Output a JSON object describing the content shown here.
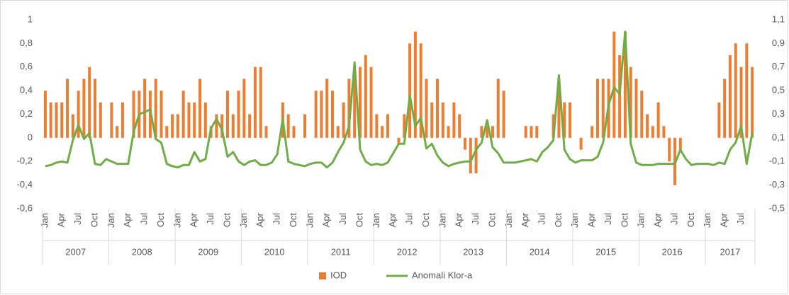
{
  "chart_data": {
    "type": "bar-line",
    "categories": [
      "Jan",
      null,
      null,
      "Apr",
      null,
      null,
      "Jul",
      null,
      null,
      "Oct",
      null,
      null,
      "Jan",
      null,
      null,
      "Apr",
      null,
      null,
      "Jul",
      null,
      null,
      "Oct",
      null,
      null,
      "Jan",
      null,
      null,
      "Apr",
      null,
      null,
      "Jul",
      null,
      null,
      "Oct",
      null,
      null,
      "Jan",
      null,
      null,
      "Apr",
      null,
      null,
      "Jul",
      null,
      null,
      "Oct",
      null,
      null,
      "Jan",
      null,
      null,
      "Apr",
      null,
      null,
      "Jul",
      null,
      null,
      "Oct",
      null,
      null,
      "Jan",
      null,
      null,
      "Apr",
      null,
      null,
      "Jul",
      null,
      null,
      "Oct",
      null,
      null,
      "Jan",
      null,
      null,
      "Apr",
      null,
      null,
      "Jul",
      null,
      null,
      "Oct",
      null,
      null,
      "Jan",
      null,
      null,
      "Apr",
      null,
      null,
      "Jul",
      null,
      null,
      "Oct",
      null,
      null,
      "Jan",
      null,
      null,
      "Apr",
      null,
      null,
      "Jul",
      null,
      null,
      "Oct",
      null,
      null,
      "Jan",
      null,
      null,
      "Apr",
      null,
      null,
      "Jul",
      null,
      null,
      "Oct",
      null,
      null,
      "Jan",
      null,
      null,
      "Apr",
      null,
      null,
      "Jul",
      null,
      null
    ],
    "years": [
      "2007",
      "2008",
      "2009",
      "2010",
      "2011",
      "2012",
      "2013",
      "2014",
      "2015",
      "2016",
      "2017"
    ],
    "series": [
      {
        "name": "IOD",
        "color": "#ed7d31",
        "axis": "y",
        "values": [
          0.4,
          0.3,
          0.3,
          0.3,
          0.5,
          0.2,
          0.4,
          0.5,
          0.6,
          0.5,
          0.3,
          0,
          0.3,
          0.1,
          0.3,
          0,
          0.4,
          0.4,
          0.5,
          0.4,
          0.5,
          0.4,
          0.1,
          0.2,
          0.2,
          0.4,
          0.3,
          0.3,
          0.5,
          0.3,
          0.1,
          0.2,
          0.2,
          0.4,
          0.2,
          0.4,
          0.5,
          0.2,
          0.6,
          0.6,
          0.1,
          0,
          0,
          0.3,
          0.2,
          0.1,
          0,
          0.2,
          0,
          0.4,
          0.4,
          0.5,
          0.4,
          0.1,
          0.3,
          0.5,
          0.6,
          0.6,
          0.7,
          0.6,
          0.2,
          0.1,
          0.2,
          0,
          -0.05,
          0.2,
          0.8,
          0.9,
          0.8,
          0.5,
          0.3,
          0.5,
          0.3,
          0.1,
          0.3,
          0.2,
          -0.1,
          -0.3,
          -0.3,
          0.1,
          0.1,
          0.1,
          0.5,
          0.4,
          0,
          0,
          0,
          0.1,
          0.1,
          0.1,
          0,
          0,
          0.2,
          0.5,
          0.3,
          0.3,
          0,
          -0.1,
          0,
          0.1,
          0.5,
          0.5,
          0.5,
          0.9,
          0.7,
          0.9,
          0.6,
          0.5,
          0.4,
          0.2,
          0.1,
          0.3,
          0.1,
          -0.2,
          -0.4,
          -0.1,
          0,
          0,
          0,
          0,
          0,
          0,
          0.3,
          0.5,
          0.7,
          0.8,
          0.6,
          0.8,
          0.6
        ]
      },
      {
        "name": "Anomali Klor-a",
        "color": "#70ad47",
        "axis": "y2",
        "values": [
          -0.14,
          -0.13,
          -0.11,
          -0.1,
          -0.11,
          0.08,
          0.21,
          0.09,
          0.14,
          -0.12,
          -0.13,
          -0.08,
          -0.1,
          -0.12,
          -0.12,
          -0.12,
          0.15,
          0.3,
          0.32,
          0.34,
          0.09,
          0.06,
          -0.12,
          -0.14,
          -0.15,
          -0.13,
          -0.13,
          -0.02,
          -0.1,
          -0.08,
          0.18,
          0.26,
          0.17,
          -0.06,
          -0.02,
          -0.1,
          -0.13,
          -0.1,
          -0.09,
          -0.13,
          -0.13,
          -0.11,
          -0.04,
          0.26,
          -0.1,
          -0.12,
          -0.13,
          -0.14,
          -0.12,
          -0.11,
          -0.11,
          -0.15,
          -0.11,
          -0.02,
          0.06,
          0.2,
          0.74,
          0.0,
          -0.1,
          -0.13,
          -0.12,
          -0.13,
          -0.11,
          -0.03,
          0.05,
          0.05,
          0.46,
          0.2,
          0.27,
          0.01,
          0.05,
          -0.05,
          -0.11,
          -0.14,
          -0.12,
          -0.11,
          -0.1,
          -0.1,
          0.0,
          0.06,
          0.25,
          0.02,
          -0.03,
          -0.11,
          -0.11,
          -0.11,
          -0.1,
          -0.09,
          -0.08,
          -0.1,
          -0.02,
          0.02,
          0.08,
          0.63,
          0.0,
          -0.08,
          -0.11,
          -0.09,
          -0.09,
          -0.09,
          -0.06,
          0.06,
          0.38,
          0.53,
          0.47,
          1.0,
          0.05,
          -0.11,
          -0.13,
          -0.13,
          -0.13,
          -0.12,
          -0.12,
          -0.12,
          -0.12,
          0.0,
          -0.08,
          -0.13,
          -0.12,
          -0.12,
          -0.12,
          -0.13,
          -0.11,
          -0.12,
          0.0,
          0.06,
          0.2,
          -0.12,
          0.14
        ]
      }
    ],
    "ylim": [
      -0.6,
      1
    ],
    "yticks": [
      {
        "value": -0.6,
        "label": "-0,6"
      },
      {
        "value": -0.4,
        "label": "-0,4"
      },
      {
        "value": -0.2,
        "label": "-0,2"
      },
      0,
      {
        "value": 0.2,
        "label": "0,2"
      },
      {
        "value": 0.4,
        "label": "0,4"
      },
      {
        "value": 0.6,
        "label": "0,6"
      },
      {
        "value": 0.8,
        "label": "0,8"
      },
      1
    ],
    "y2lim": [
      -0.5,
      1.1
    ],
    "y2ticks": [
      {
        "value": -0.5,
        "label": "-0,5"
      },
      {
        "value": -0.3,
        "label": "-0,3"
      },
      {
        "value": -0.1,
        "label": "-0,1"
      },
      {
        "value": 0.1,
        "label": "0,1"
      },
      {
        "value": 0.3,
        "label": "0,3"
      },
      {
        "value": 0.5,
        "label": "0,5"
      },
      {
        "value": 0.7,
        "label": "0,7"
      },
      {
        "value": 0.9,
        "label": "0,9"
      },
      {
        "value": 1.1,
        "label": "1,1"
      }
    ],
    "legend": "bottom"
  }
}
